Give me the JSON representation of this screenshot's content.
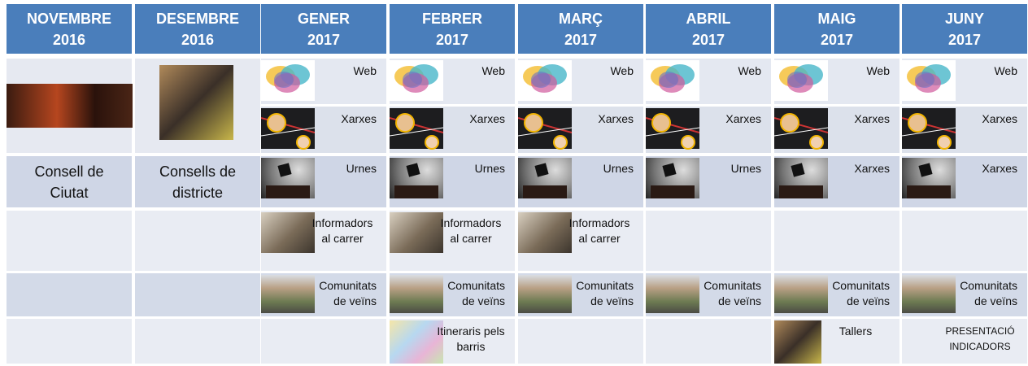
{
  "header": [
    {
      "month": "NOVEMBRE",
      "year": "2016"
    },
    {
      "month": "DESEMBRE",
      "year": "2016"
    },
    {
      "month": "GENER",
      "year": "2017"
    },
    {
      "month": "FEBRER",
      "year": "2017"
    },
    {
      "month": "MARÇ",
      "year": "2017"
    },
    {
      "month": "ABRIL",
      "year": "2017"
    },
    {
      "month": "MAIG",
      "year": "2017"
    },
    {
      "month": "JUNY",
      "year": "2017"
    }
  ],
  "bodies": [
    "Consell de Ciutat",
    "Consells de districte"
  ],
  "rows": [
    [
      "Web",
      "Web",
      "Web",
      "Web",
      "Web",
      "Web"
    ],
    [
      "Xarxes",
      "Xarxes",
      "Xarxes",
      "Xarxes",
      "Xarxes",
      "Xarxes"
    ],
    [
      "Urnes",
      "Urnes",
      "Urnes",
      "Urnes",
      "Xarxes",
      "Xarxes"
    ],
    [
      "Informadors al carrer",
      "Informadors al carrer",
      "Informadors al carrer",
      null,
      null,
      null
    ],
    [
      "Comunitats de veïns",
      "Comunitats de veïns",
      "Comunitats de veïns",
      "Comunitats de veïns",
      "Comunitats de veïns",
      "Comunitats de veïns"
    ],
    [
      null,
      "Itineraris pels barris",
      null,
      null,
      "Tallers",
      "PRESENTACIÓ INDICADORS"
    ]
  ]
}
